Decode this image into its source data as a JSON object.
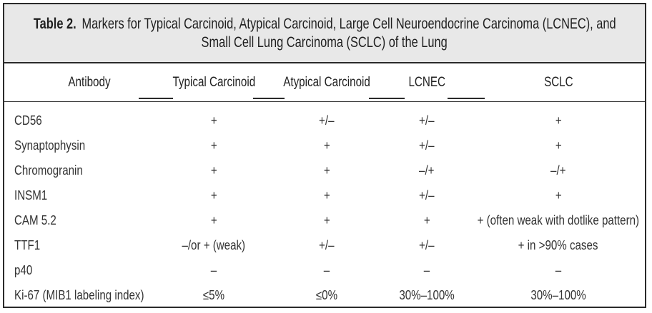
{
  "title": {
    "label": "Table 2.",
    "line1": "Markers for Typical Carcinoid, Atypical Carcinoid, Large Cell Neuroendocrine Carcinoma (LCNEC), and",
    "line2": "Small Cell Lung Carcinoma (SCLC) of the Lung"
  },
  "headers": [
    "Antibody",
    "Typical Carcinoid",
    "Atypical Carcinoid",
    "LCNEC",
    "SCLC"
  ],
  "rows": [
    [
      "CD56",
      "+",
      "+/–",
      "+/–",
      "+"
    ],
    [
      "Synaptophysin",
      "+",
      "+",
      "+/–",
      "+"
    ],
    [
      "Chromogranin",
      "+",
      "+",
      "–/+",
      "–/+"
    ],
    [
      "INSM1",
      "+",
      "+",
      "+/–",
      "+"
    ],
    [
      "CAM 5.2",
      "+",
      "+",
      "+",
      "+ (often weak with dotlike pattern)"
    ],
    [
      "TTF1",
      "–/or + (weak)",
      "+/–",
      "+/–",
      "+ in >90% cases"
    ],
    [
      "p40",
      "–",
      "–",
      "–",
      "–"
    ],
    [
      "Ki-67 (MIB1 labeling index)",
      "≤5%",
      "≤0%",
      "30%–100%",
      "30%–100%"
    ]
  ]
}
